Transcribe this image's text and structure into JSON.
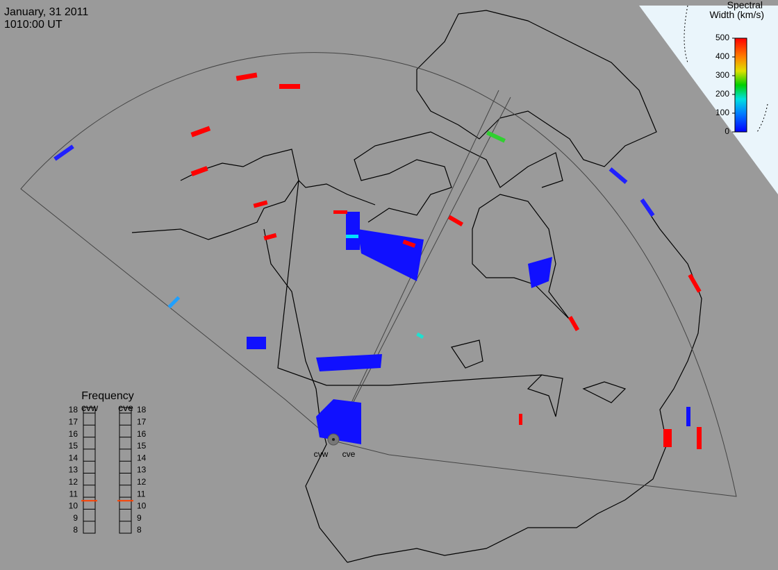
{
  "header": {
    "date": "January, 31 2011",
    "time": "1010:00 UT"
  },
  "colorbar": {
    "title_line1": "Spectral",
    "title_line2": "Width (km/s)",
    "ticks": [
      0,
      100,
      200,
      300,
      400,
      500
    ],
    "range": [
      0,
      500
    ]
  },
  "frequency": {
    "title": "Frequency",
    "ticks": [
      8,
      9,
      10,
      11,
      12,
      13,
      14,
      15,
      16,
      17,
      18
    ],
    "range": [
      8,
      18
    ],
    "radars": [
      {
        "name": "cvw",
        "value": 10.7
      },
      {
        "name": "cve",
        "value": 10.7
      }
    ]
  },
  "map": {
    "radar_labels": [
      "cvw",
      "cve"
    ]
  }
}
